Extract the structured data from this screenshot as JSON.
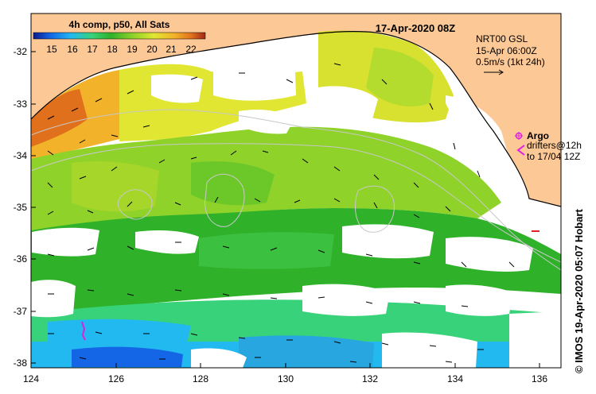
{
  "title": "17-Apr-2020 08Z",
  "colorbar": {
    "label": "4h comp, p50, All Sats",
    "ticks": [
      "15",
      "16",
      "17",
      "18",
      "19",
      "20",
      "21",
      "22"
    ],
    "colors": [
      "#0a1a8c",
      "#1466e6",
      "#22b8f0",
      "#38d27a",
      "#2fb12a",
      "#8fd22a",
      "#e0e632",
      "#f2b22a",
      "#e0701c",
      "#a0281a"
    ]
  },
  "info": {
    "line1": "NRT00 GSL",
    "line2": "15-Apr 06:00Z",
    "line3": "0.5m/s (1kt 24h)"
  },
  "legend": {
    "argo": "Argo",
    "drifters1": "drifters@12h",
    "drifters2": "to 17/04 12Z",
    "argo_color": "#e020e0",
    "drifter_color": "#e020e0"
  },
  "credit": "© IMOS 19-Apr-2020 05:07 Hobart",
  "axes": {
    "x_ticks": [
      "124",
      "126",
      "128",
      "130",
      "132",
      "134",
      "136"
    ],
    "y_ticks": [
      "-32",
      "-33",
      "-34",
      "-35",
      "-36",
      "-37",
      "-38"
    ]
  },
  "colors": {
    "land": "#fcc896",
    "frame": "#000000"
  }
}
